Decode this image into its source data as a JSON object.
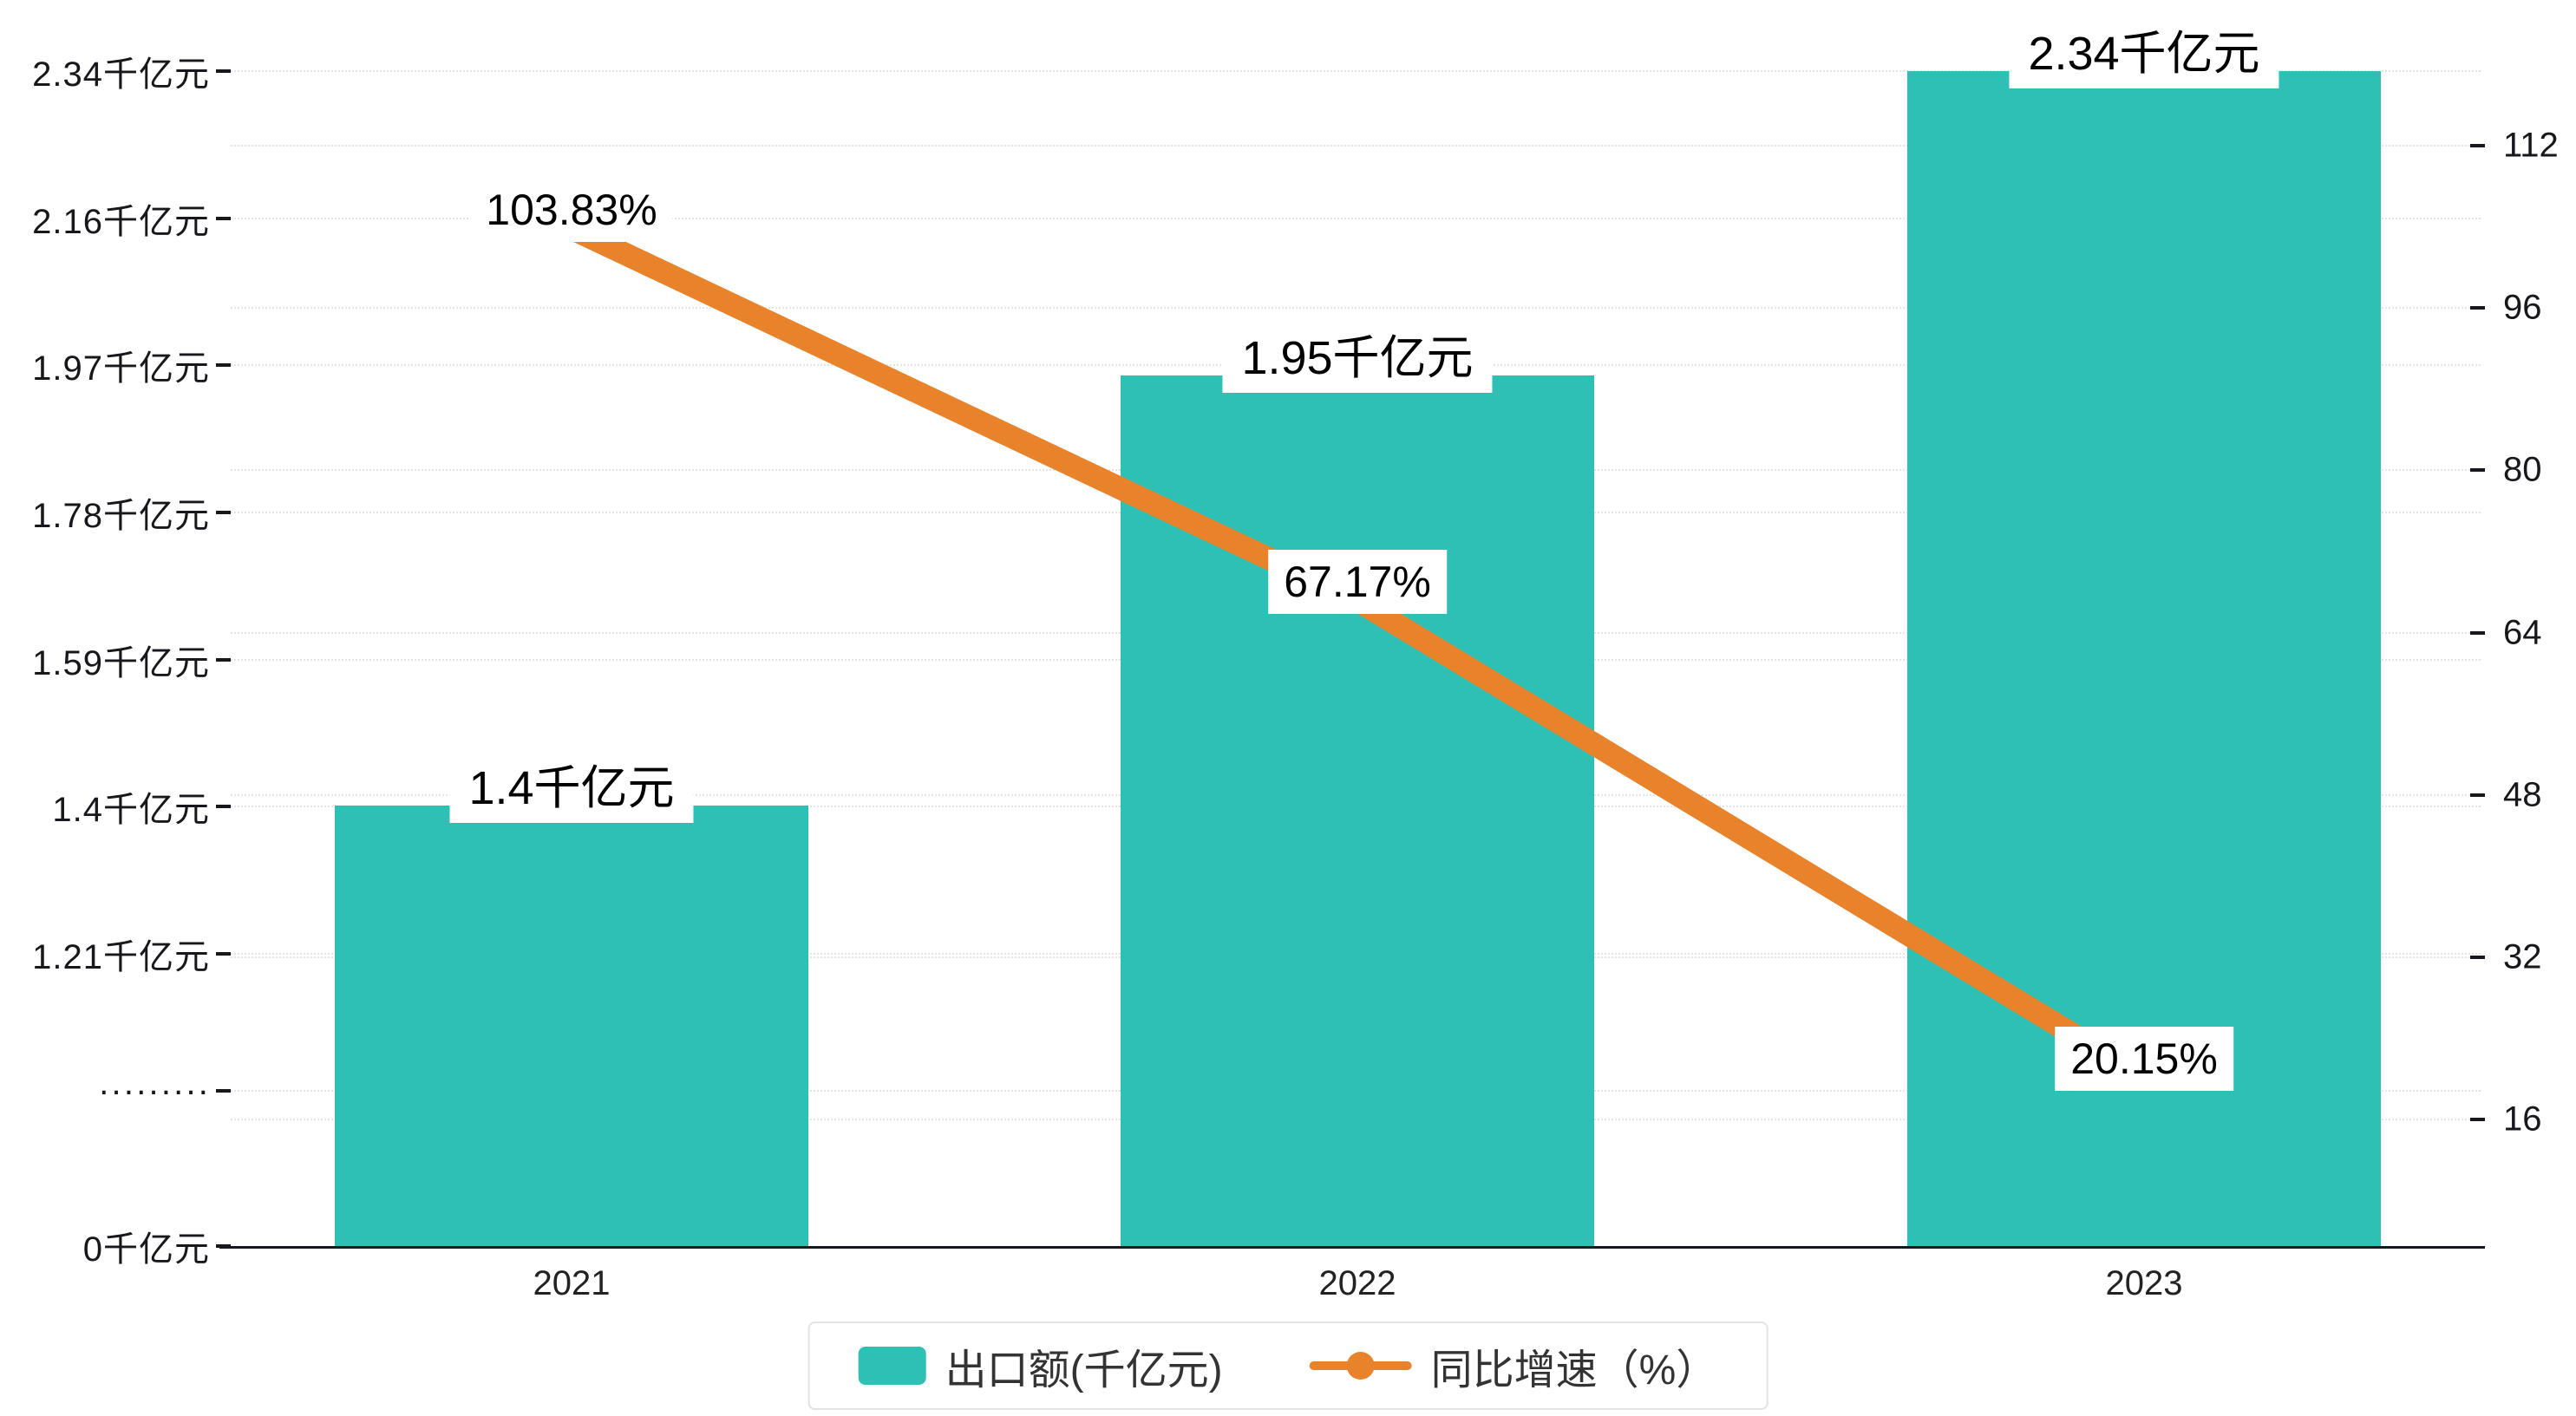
{
  "chart_data": {
    "type": "bar",
    "title": "",
    "categories": [
      "2021",
      "2022",
      "2023"
    ],
    "series": [
      {
        "name": "出口额(千亿元)",
        "type": "bar",
        "color": "#2ec0b4",
        "values": [
          1.4,
          1.95,
          2.34
        ],
        "labels": [
          "1.4千亿元",
          "1.95千亿元",
          "2.34千亿元"
        ]
      },
      {
        "name": "同比增速（%）",
        "type": "line",
        "color": "#e8832b",
        "values": [
          103.83,
          67.17,
          20.15
        ],
        "labels": [
          "103.83%",
          "67.17%",
          "20.15%"
        ]
      }
    ],
    "left_axis": {
      "unit": "千亿元",
      "ticks": [
        "2.34千亿元",
        "2.16千亿元",
        "1.97千亿元",
        "1.78千亿元",
        "1.59千亿元",
        "1.4千亿元",
        "1.21千亿元",
        "·········",
        "0千亿元"
      ]
    },
    "right_axis": {
      "ticks": [
        112,
        96,
        80,
        64,
        48,
        32,
        16
      ]
    },
    "legend_position": "bottom",
    "grid": "dotted-horizontal"
  }
}
